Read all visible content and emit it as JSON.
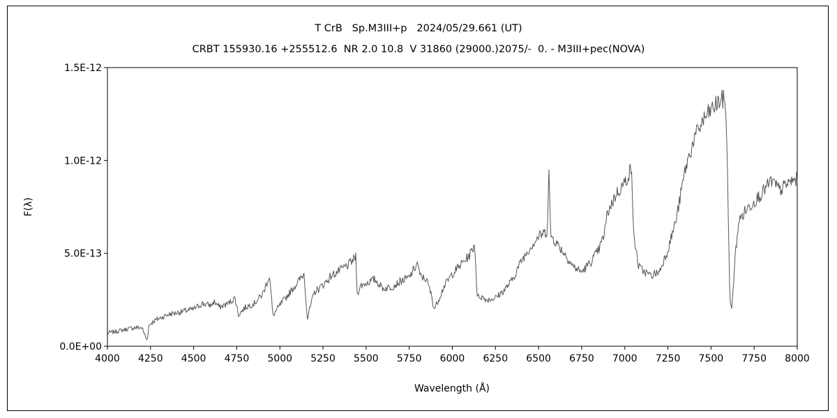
{
  "chart_data": {
    "type": "line",
    "title": "T CrB   Sp.M3III+p   2024/05/29.661 (UT)",
    "subtitle": "CRBT 155930.16 +255512.6  NR 2.0 10.8  V 31860 (29000.)2075/-  0. - M3III+pec(NOVA)",
    "xlabel": "Wavelength (Å)",
    "ylabel": "F(λ)",
    "xlim": [
      4000,
      8000
    ],
    "ylim": [
      0,
      1.5e-12
    ],
    "xticks": [
      4000,
      4250,
      4500,
      4750,
      5000,
      5250,
      5500,
      5750,
      6000,
      6250,
      6500,
      6750,
      7000,
      7250,
      7500,
      7750,
      8000
    ],
    "xtick_labels": [
      "4000",
      "4250",
      "4500",
      "4750",
      "5000",
      "5250",
      "5500",
      "5750",
      "6000",
      "6250",
      "6500",
      "6750",
      "7000",
      "7250",
      "7500",
      "7750",
      "8000"
    ],
    "yticks": [
      0,
      5e-13,
      1e-12,
      1.5e-12
    ],
    "ytick_labels": [
      "0.0E+00",
      "5.0E-13",
      "1.0E-12",
      "1.5E-12"
    ],
    "grid": false,
    "legend": "none",
    "line_color": "#555555",
    "series": [
      {
        "x": [
          4000,
          4050,
          4100,
          4150,
          4200,
          4230,
          4240,
          4260,
          4300,
          4350,
          4400,
          4450,
          4500,
          4550,
          4600,
          4620,
          4650,
          4700,
          4740,
          4760,
          4800,
          4850,
          4900,
          4940,
          4960,
          4970,
          5000,
          5050,
          5100,
          5140,
          5160,
          5170,
          5200,
          5250,
          5300,
          5350,
          5400,
          5440,
          5450,
          5460,
          5500,
          5550,
          5600,
          5650,
          5700,
          5750,
          5800,
          5810,
          5850,
          5880,
          5895,
          5920,
          5950,
          6000,
          6050,
          6100,
          6130,
          6145,
          6160,
          6200,
          6250,
          6300,
          6350,
          6400,
          6450,
          6500,
          6550,
          6560,
          6570,
          6600,
          6650,
          6700,
          6750,
          6800,
          6850,
          6880,
          6900,
          6950,
          7000,
          7040,
          7050,
          7060,
          7080,
          7100,
          7150,
          7200,
          7250,
          7300,
          7350,
          7400,
          7450,
          7500,
          7550,
          7580,
          7590,
          7600,
          7610,
          7620,
          7640,
          7660,
          7700,
          7750,
          7800,
          7850,
          7900,
          7950,
          8000
        ],
        "y": [
          7e-14,
          8e-14,
          9e-14,
          1e-13,
          1e-13,
          3e-14,
          1.1e-13,
          1.3e-13,
          1.5e-13,
          1.7e-13,
          1.8e-13,
          1.9e-13,
          2e-13,
          2.3e-13,
          2.2e-13,
          2.4e-13,
          2.1e-13,
          2.3e-13,
          2.6e-13,
          1.7e-13,
          2.1e-13,
          2.3e-13,
          2.8e-13,
          3.8e-13,
          1.6e-13,
          1.8e-13,
          2.2e-13,
          2.8e-13,
          3.4e-13,
          3.9e-13,
          1.5e-13,
          1.9e-13,
          2.9e-13,
          3.3e-13,
          3.8e-13,
          4.1e-13,
          4.4e-13,
          4.8e-13,
          2.6e-13,
          3.2e-13,
          3.4e-13,
          3.6e-13,
          3.1e-13,
          3.2e-13,
          3.5e-13,
          3.7e-13,
          4.5e-13,
          3.8e-13,
          3.6e-13,
          2.7e-13,
          2e-13,
          2.5e-13,
          3.2e-13,
          3.9e-13,
          4.4e-13,
          4.9e-13,
          5.5e-13,
          2.6e-13,
          2.7e-13,
          2.5e-13,
          2.6e-13,
          3e-13,
          3.6e-13,
          4.6e-13,
          5.3e-13,
          5.9e-13,
          6.2e-13,
          9.4e-13,
          6e-13,
          5.6e-13,
          5e-13,
          4.3e-13,
          4e-13,
          4.5e-13,
          5.2e-13,
          6e-13,
          7.2e-13,
          8.2e-13,
          8.8e-13,
          9.6e-13,
          6e-13,
          5.5e-13,
          4.3e-13,
          4.1e-13,
          3.8e-13,
          4e-13,
          5.2e-13,
          6.9e-13,
          9.5e-13,
          1.11e-12,
          1.21e-12,
          1.27e-12,
          1.32e-12,
          1.33e-12,
          1.2e-12,
          7e-13,
          2.4e-13,
          1.9e-13,
          4.8e-13,
          6.7e-13,
          7.3e-13,
          7.8e-13,
          8.3e-13,
          8.9e-13,
          8.4e-13,
          8.8e-13,
          9e-13
        ]
      }
    ]
  }
}
